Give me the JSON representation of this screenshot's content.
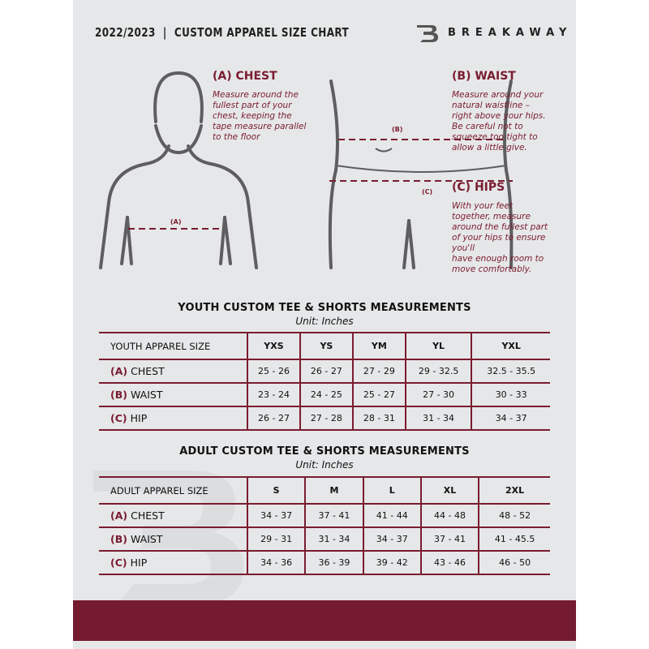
{
  "header": {
    "title": "2022/2023  |  CUSTOM APPAREL SIZE CHART",
    "brand": "BREAKAWAY"
  },
  "colors": {
    "accent": "#7a1c30",
    "background": "#e6e7e8",
    "footer": "#741b2f"
  },
  "measures": {
    "chest": {
      "heading": "(A) CHEST",
      "tag": "(A)",
      "text": "Measure around the\nfullest part of your\nchest, keeping the\ntape measure parallel\nto the floor"
    },
    "waist": {
      "heading": "(B) WAIST",
      "tag": "(B)",
      "text": "Measure around your\nnatural waistline –\nright above your hips.\nBe careful not to\nsqueeze too tight to\nallow a little give."
    },
    "hips": {
      "heading": "(C) HIPS",
      "tag": "(C)",
      "text": "With your feet\ntogether, measure\naround the fullest part\nof your hips to ensure\nyou'll\nhave enough room to\nmove comfortably."
    }
  },
  "youth": {
    "title": "YOUTH CUSTOM TEE & SHORTS MEASUREMENTS",
    "unit": "Unit: Inches",
    "size_label": "YOUTH APPAREL SIZE",
    "sizes": [
      "YXS",
      "YS",
      "YM",
      "YL",
      "YXL"
    ],
    "rows": [
      {
        "letter": "(A)",
        "label": "CHEST",
        "values": [
          "25 - 26",
          "26 - 27",
          "27 - 29",
          "29 - 32.5",
          "32.5 - 35.5"
        ]
      },
      {
        "letter": "(B)",
        "label": "WAIST",
        "values": [
          "23 - 24",
          "24 - 25",
          "25 - 27",
          "27 - 30",
          "30 - 33"
        ]
      },
      {
        "letter": "(C)",
        "label": "HIP",
        "values": [
          "26 - 27",
          "27 - 28",
          "28 - 31",
          "31 - 34",
          "34 - 37"
        ]
      }
    ]
  },
  "adult": {
    "title": "ADULT CUSTOM TEE & SHORTS MEASUREMENTS",
    "unit": "Unit: Inches",
    "size_label": "ADULT APPAREL SIZE",
    "sizes": [
      "S",
      "M",
      "L",
      "XL",
      "2XL"
    ],
    "rows": [
      {
        "letter": "(A)",
        "label": "CHEST",
        "values": [
          "34 - 37",
          "37 - 41",
          "41 - 44",
          "44 - 48",
          "48 - 52"
        ]
      },
      {
        "letter": "(B)",
        "label": "WAIST",
        "values": [
          "29 - 31",
          "31 - 34",
          "34 - 37",
          "37 - 41",
          "41 - 45.5"
        ]
      },
      {
        "letter": "(C)",
        "label": "HIP",
        "values": [
          "34 - 36",
          "36 - 39",
          "39 - 42",
          "43 - 46",
          "46 - 50"
        ]
      }
    ]
  }
}
